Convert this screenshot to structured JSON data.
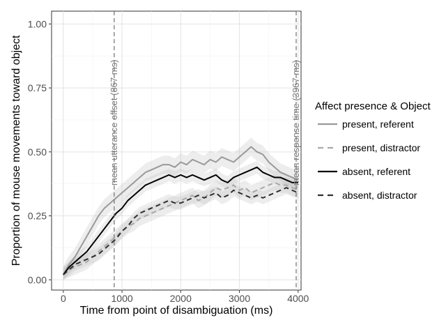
{
  "chart_data": {
    "type": "line",
    "xlabel": "Time from point of disambiguation (ms)",
    "ylabel": "Proportion of mouse movements toward object",
    "xlim": [
      -200,
      4050
    ],
    "ylim": [
      -0.04,
      1.05
    ],
    "x_ticks": [
      0,
      1000,
      2000,
      3000,
      4000
    ],
    "x_tick_labels": [
      "0",
      "1000",
      "2000",
      "3000",
      "4000"
    ],
    "y_ticks": [
      0,
      0.25,
      0.5,
      0.75,
      1.0
    ],
    "y_tick_labels": [
      "0.00",
      "0.25",
      "0.50",
      "0.75",
      "1.00"
    ],
    "grid": true,
    "legend": {
      "title": "Affect presence & Object",
      "position": "right"
    },
    "annotations": [
      {
        "x": 867,
        "label": "mean utterance offset (867 ms)"
      },
      {
        "x": 3967,
        "label": "mean response time (3967 ms)"
      }
    ],
    "series": [
      {
        "name": "present, referent",
        "color": "#999999",
        "dash": "solid",
        "x": [
          0,
          100,
          200,
          300,
          400,
          500,
          600,
          700,
          800,
          900,
          1000,
          1100,
          1200,
          1300,
          1400,
          1500,
          1600,
          1700,
          1800,
          1900,
          2000,
          2100,
          2200,
          2300,
          2400,
          2500,
          2600,
          2700,
          2800,
          2900,
          3000,
          3100,
          3200,
          3300,
          3400,
          3500,
          3600,
          3700,
          3800,
          3900,
          4000
        ],
        "values": [
          0.02,
          0.06,
          0.09,
          0.13,
          0.17,
          0.21,
          0.25,
          0.28,
          0.3,
          0.32,
          0.34,
          0.36,
          0.38,
          0.4,
          0.42,
          0.43,
          0.44,
          0.45,
          0.45,
          0.44,
          0.46,
          0.45,
          0.47,
          0.46,
          0.45,
          0.47,
          0.46,
          0.48,
          0.47,
          0.46,
          0.48,
          0.5,
          0.52,
          0.5,
          0.49,
          0.46,
          0.44,
          0.42,
          0.41,
          0.4,
          0.39
        ],
        "band": 0.035
      },
      {
        "name": "present, distractor",
        "color": "#a8a8a8",
        "dash": "dashed",
        "x": [
          0,
          100,
          200,
          300,
          400,
          500,
          600,
          700,
          800,
          900,
          1000,
          1100,
          1200,
          1300,
          1400,
          1500,
          1600,
          1700,
          1800,
          1900,
          2000,
          2100,
          2200,
          2300,
          2400,
          2500,
          2600,
          2700,
          2800,
          2900,
          3000,
          3100,
          3200,
          3300,
          3400,
          3500,
          3600,
          3700,
          3800,
          3900,
          4000
        ],
        "values": [
          0.02,
          0.04,
          0.05,
          0.06,
          0.07,
          0.09,
          0.11,
          0.13,
          0.15,
          0.17,
          0.19,
          0.21,
          0.22,
          0.24,
          0.25,
          0.26,
          0.27,
          0.28,
          0.29,
          0.3,
          0.31,
          0.32,
          0.33,
          0.31,
          0.32,
          0.34,
          0.36,
          0.35,
          0.36,
          0.37,
          0.35,
          0.36,
          0.34,
          0.35,
          0.36,
          0.37,
          0.38,
          0.37,
          0.37,
          0.36,
          0.35
        ],
        "band": 0.03
      },
      {
        "name": "absent, referent",
        "color": "#000000",
        "dash": "solid",
        "x": [
          0,
          100,
          200,
          300,
          400,
          500,
          600,
          700,
          800,
          900,
          1000,
          1100,
          1200,
          1300,
          1400,
          1500,
          1600,
          1700,
          1800,
          1900,
          2000,
          2100,
          2200,
          2300,
          2400,
          2500,
          2600,
          2700,
          2800,
          2900,
          3000,
          3100,
          3200,
          3300,
          3400,
          3500,
          3600,
          3700,
          3800,
          3900,
          4000
        ],
        "values": [
          0.02,
          0.05,
          0.07,
          0.09,
          0.11,
          0.14,
          0.17,
          0.2,
          0.23,
          0.26,
          0.28,
          0.31,
          0.33,
          0.35,
          0.37,
          0.38,
          0.39,
          0.4,
          0.41,
          0.4,
          0.41,
          0.4,
          0.41,
          0.4,
          0.39,
          0.4,
          0.41,
          0.39,
          0.38,
          0.4,
          0.41,
          0.42,
          0.43,
          0.44,
          0.42,
          0.41,
          0.4,
          0.4,
          0.39,
          0.38,
          0.38
        ],
        "band": 0.025
      },
      {
        "name": "absent, distractor",
        "color": "#2e2e2e",
        "dash": "dashed",
        "x": [
          0,
          100,
          200,
          300,
          400,
          500,
          600,
          700,
          800,
          900,
          1000,
          1100,
          1200,
          1300,
          1400,
          1500,
          1600,
          1700,
          1800,
          1900,
          2000,
          2100,
          2200,
          2300,
          2400,
          2500,
          2600,
          2700,
          2800,
          2900,
          3000,
          3100,
          3200,
          3300,
          3400,
          3500,
          3600,
          3700,
          3800,
          3900,
          4000
        ],
        "values": [
          0.02,
          0.04,
          0.06,
          0.07,
          0.08,
          0.09,
          0.1,
          0.12,
          0.14,
          0.16,
          0.19,
          0.21,
          0.24,
          0.26,
          0.27,
          0.28,
          0.29,
          0.3,
          0.31,
          0.3,
          0.3,
          0.31,
          0.32,
          0.33,
          0.32,
          0.33,
          0.34,
          0.32,
          0.33,
          0.35,
          0.34,
          0.33,
          0.32,
          0.33,
          0.32,
          0.33,
          0.34,
          0.35,
          0.36,
          0.35,
          0.34
        ],
        "band": 0.025
      }
    ]
  }
}
